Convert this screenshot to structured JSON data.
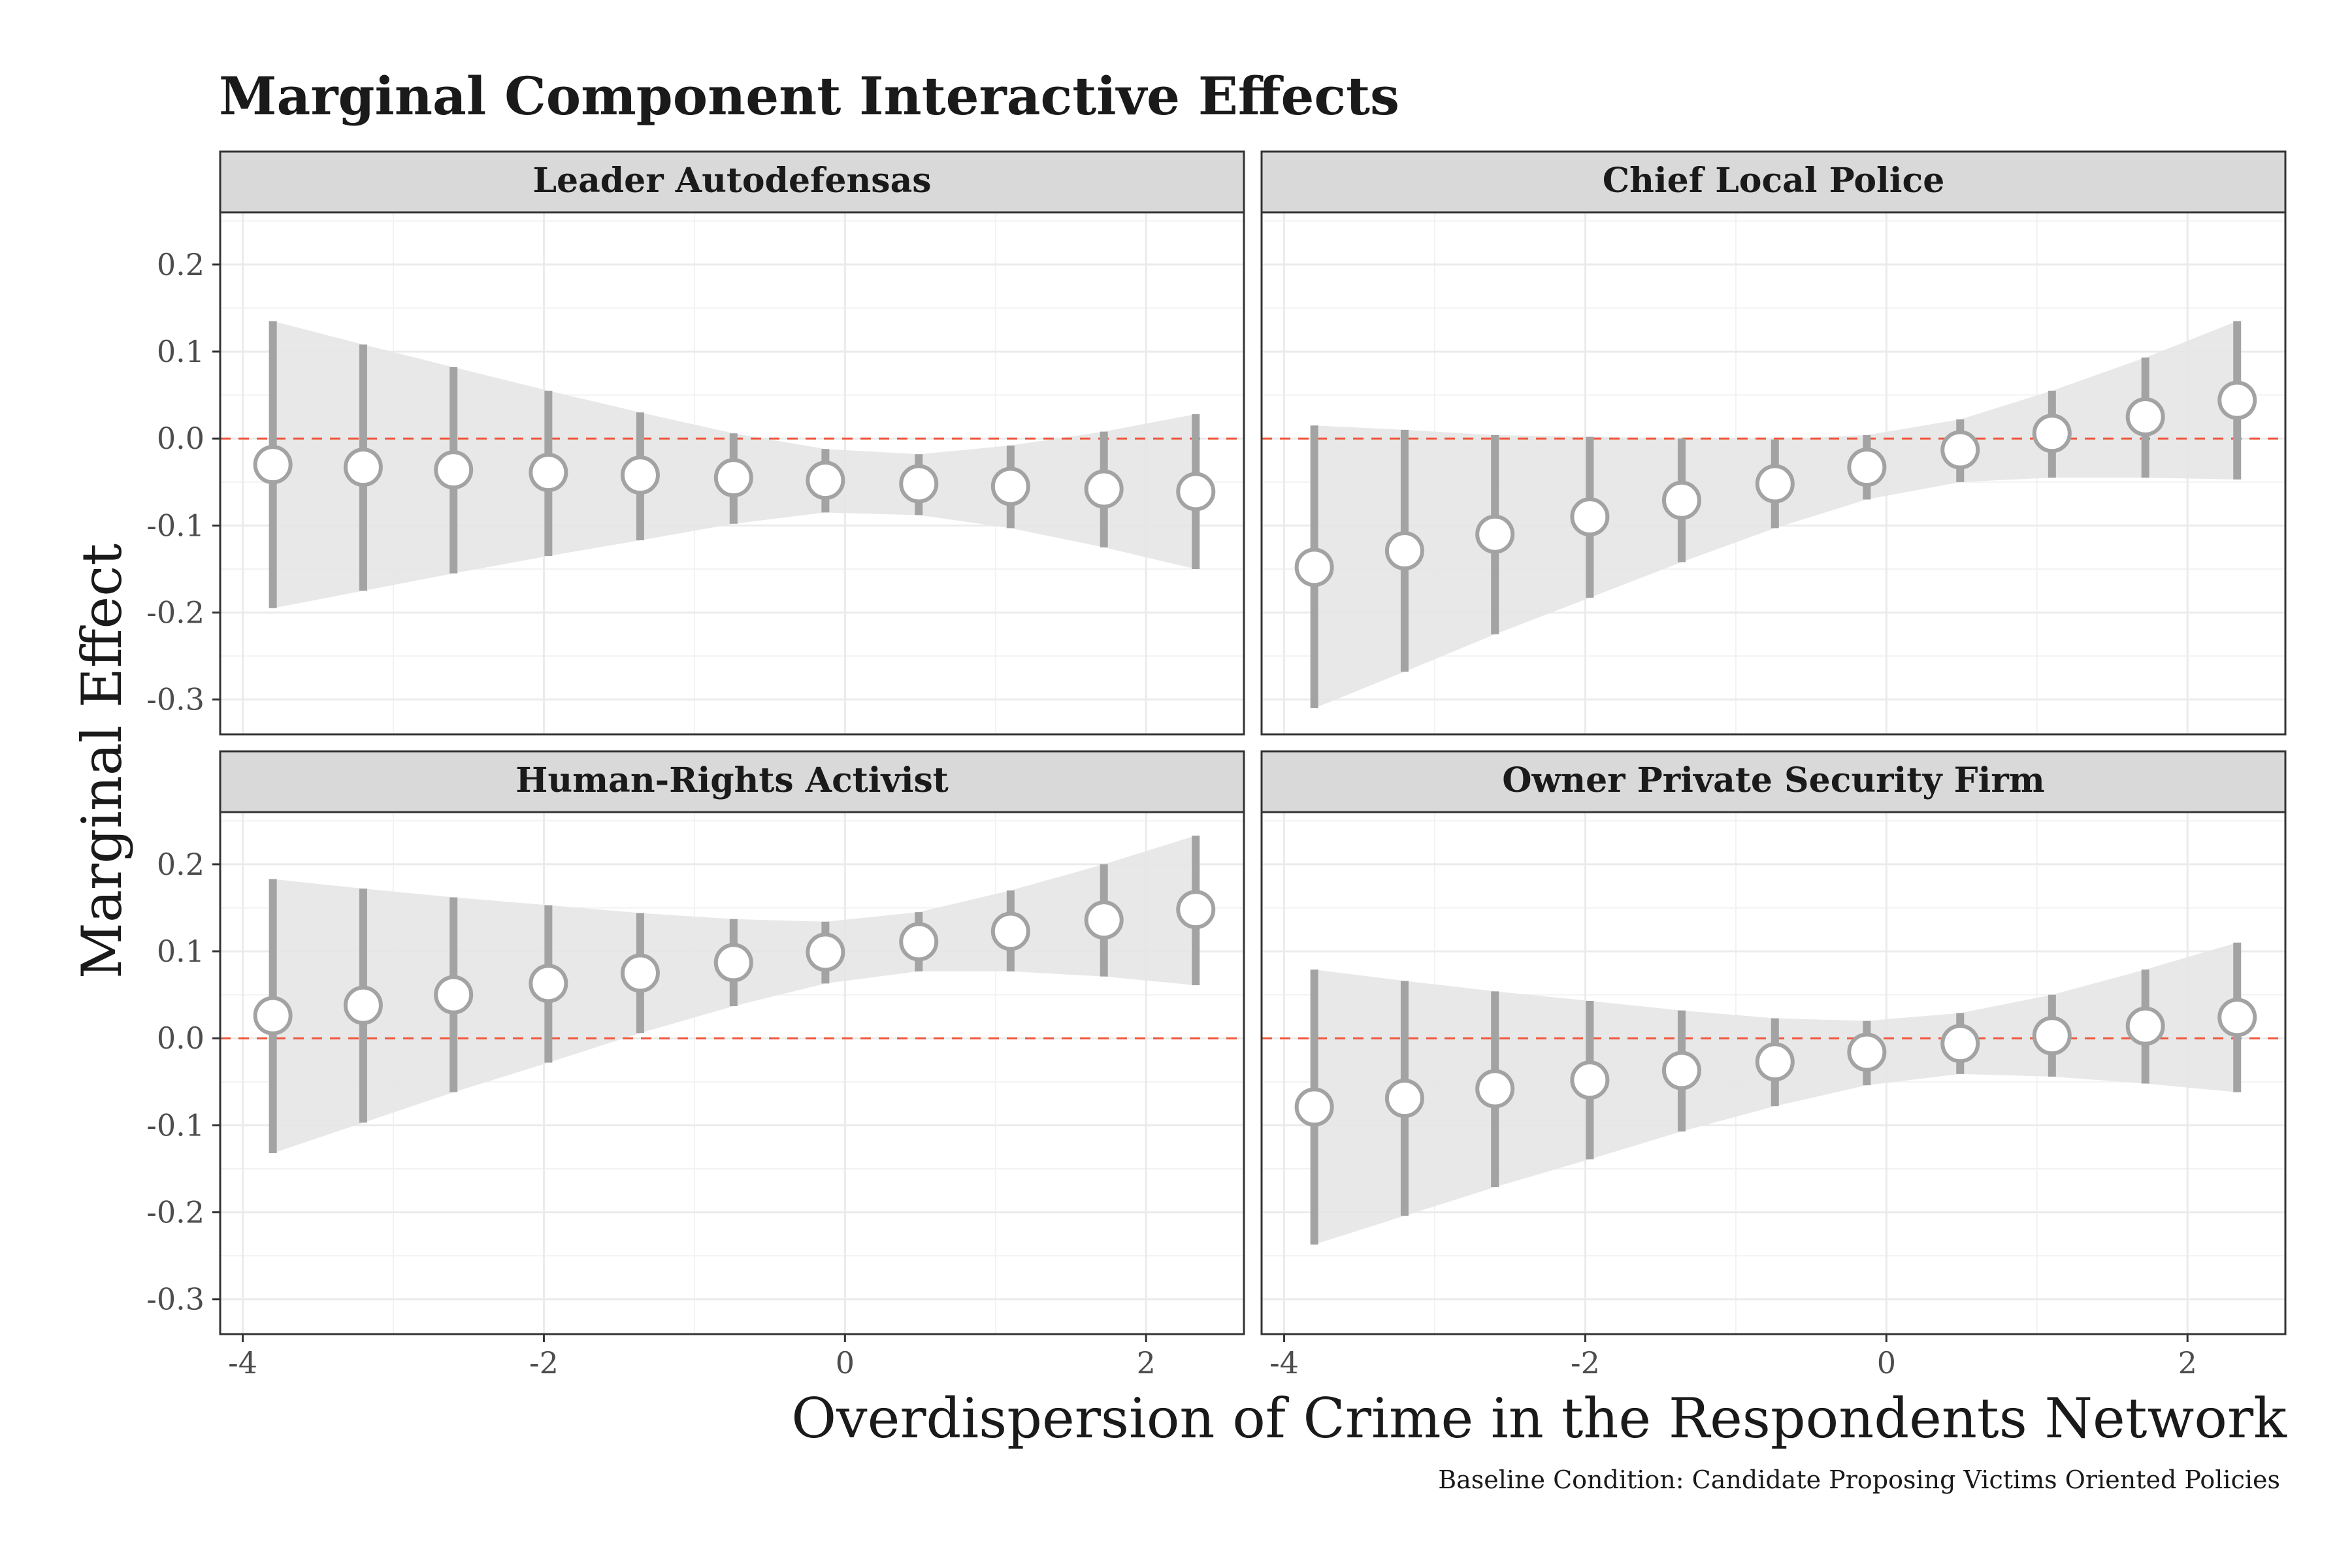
{
  "chart_data": {
    "type": "scatter",
    "title": "Marginal Component Interactive Effects",
    "xlabel": "Overdispersion of Crime in the Respondents Network",
    "ylabel": "Marginal Effect",
    "caption": "Baseline Condition: Candidate Proposing Victims Oriented Policies",
    "xlim": [
      -4.15,
      2.65
    ],
    "ylim": [
      -0.34,
      0.26
    ],
    "x_ticks": [
      "-4",
      "-2",
      "0",
      "2"
    ],
    "y_ticks": [
      "-0.3",
      "-0.2",
      "-0.1",
      "0.0",
      "0.1",
      "0.2"
    ],
    "reference_line": 0.0,
    "grid": true,
    "x": [
      -3.8,
      -3.2,
      -2.6,
      -1.97,
      -1.36,
      -0.74,
      -0.13,
      0.49,
      1.1,
      1.72,
      2.33
    ],
    "panels": [
      {
        "name": "Leader Autodefensas",
        "estimate": [
          -0.03,
          -0.033,
          -0.036,
          -0.039,
          -0.042,
          -0.045,
          -0.048,
          -0.052,
          -0.055,
          -0.058,
          -0.061
        ],
        "lower": [
          -0.195,
          -0.175,
          -0.155,
          -0.135,
          -0.117,
          -0.098,
          -0.085,
          -0.088,
          -0.103,
          -0.125,
          -0.15
        ],
        "upper": [
          0.135,
          0.108,
          0.082,
          0.055,
          0.03,
          0.006,
          -0.012,
          -0.018,
          -0.008,
          0.008,
          0.028
        ]
      },
      {
        "name": "Chief Local Police",
        "estimate": [
          -0.148,
          -0.129,
          -0.11,
          -0.09,
          -0.071,
          -0.052,
          -0.033,
          -0.013,
          0.006,
          0.025,
          0.044
        ],
        "lower": [
          -0.31,
          -0.268,
          -0.225,
          -0.183,
          -0.142,
          -0.103,
          -0.07,
          -0.05,
          -0.045,
          -0.045,
          -0.047
        ],
        "upper": [
          0.015,
          0.01,
          0.004,
          0.002,
          0.0,
          -0.001,
          0.004,
          0.022,
          0.055,
          0.093,
          0.135
        ]
      },
      {
        "name": "Human-Rights Activist",
        "estimate": [
          0.026,
          0.038,
          0.05,
          0.063,
          0.075,
          0.087,
          0.099,
          0.111,
          0.123,
          0.136,
          0.148
        ],
        "lower": [
          -0.132,
          -0.097,
          -0.062,
          -0.028,
          0.006,
          0.037,
          0.063,
          0.077,
          0.077,
          0.071,
          0.061
        ],
        "upper": [
          0.183,
          0.172,
          0.162,
          0.153,
          0.144,
          0.137,
          0.134,
          0.145,
          0.17,
          0.2,
          0.233
        ]
      },
      {
        "name": "Owner Private Security Firm",
        "estimate": [
          -0.079,
          -0.069,
          -0.058,
          -0.048,
          -0.037,
          -0.027,
          -0.016,
          -0.006,
          0.003,
          0.014,
          0.024
        ],
        "lower": [
          -0.237,
          -0.204,
          -0.171,
          -0.139,
          -0.107,
          -0.078,
          -0.054,
          -0.041,
          -0.044,
          -0.052,
          -0.062
        ],
        "upper": [
          0.079,
          0.066,
          0.054,
          0.043,
          0.032,
          0.023,
          0.02,
          0.029,
          0.05,
          0.079,
          0.11
        ]
      }
    ]
  }
}
